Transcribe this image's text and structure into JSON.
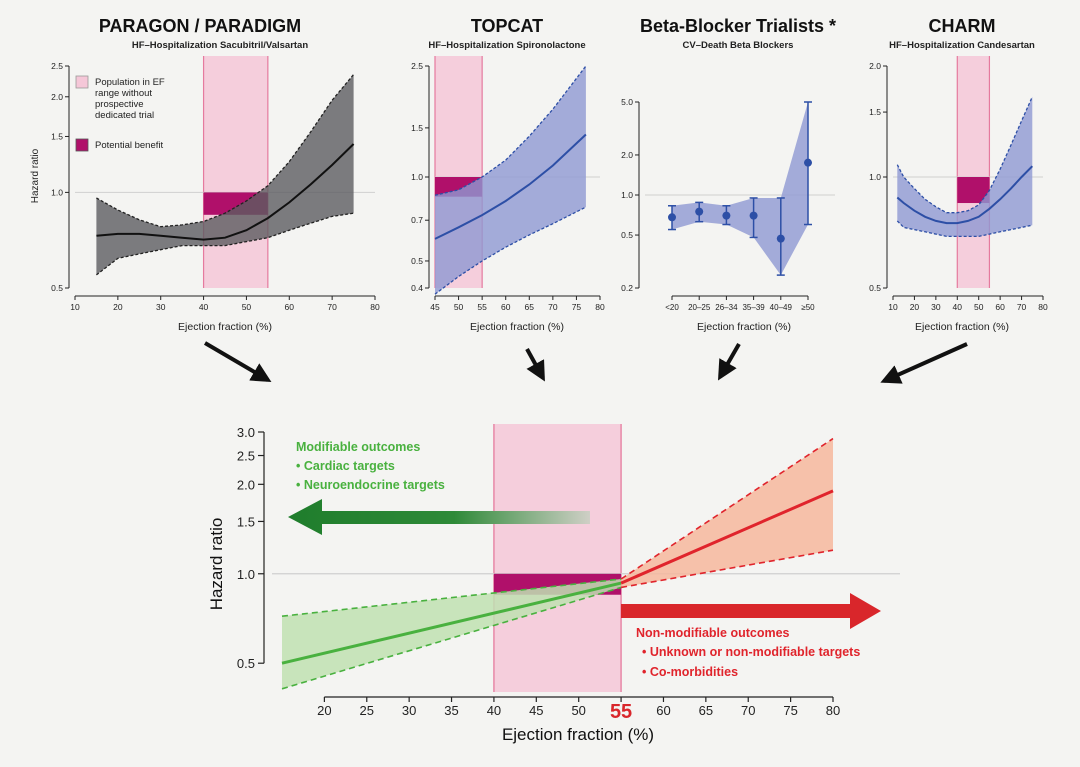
{
  "colors": {
    "pink": "#f5c7d8",
    "pink_edge": "#e57a9e",
    "benefit": "#b0106a",
    "gray_band": "#5d5d60",
    "blue_band": "#8f99d2",
    "blue_line": "#2d4fa6",
    "green_band": "#bfe1b1",
    "green_line": "#49b13f",
    "red_band": "#f6b79d",
    "red_line": "#e0242c",
    "green_arrow": "#1f7d2c",
    "red_arrow": "#d9262b"
  },
  "chart_data": [
    {
      "id": "paragon",
      "type": "area",
      "title": "PARAGON / PARADIGM",
      "subtitle": "HF–Hospitalization Sacubitril/Valsartan",
      "xlabel": "Ejection fraction (%)",
      "ylabel": "Hazard ratio",
      "xlim": [
        10,
        80
      ],
      "ylim": [
        0.5,
        2.5
      ],
      "yscale": "log",
      "xticks": [
        10,
        20,
        30,
        40,
        50,
        60,
        70,
        80
      ],
      "yticks": [
        0.5,
        1.0,
        1.5,
        2.0,
        2.5
      ],
      "highlight_range": [
        40,
        55
      ],
      "benefit": {
        "x": [
          40,
          55
        ],
        "y": [
          0.85,
          1.0
        ]
      },
      "band": {
        "color": "gray",
        "x": [
          15,
          20,
          25,
          30,
          35,
          40,
          45,
          50,
          55,
          60,
          65,
          70,
          75
        ],
        "lower": [
          0.55,
          0.62,
          0.64,
          0.66,
          0.68,
          0.68,
          0.68,
          0.7,
          0.72,
          0.76,
          0.8,
          0.84,
          0.86
        ],
        "upper": [
          0.96,
          0.88,
          0.82,
          0.78,
          0.79,
          0.81,
          0.86,
          0.94,
          1.05,
          1.25,
          1.55,
          1.95,
          2.35
        ]
      },
      "line": {
        "x": [
          15,
          20,
          25,
          30,
          35,
          40,
          45,
          50,
          55,
          60,
          65,
          70,
          75
        ],
        "y": [
          0.73,
          0.74,
          0.74,
          0.73,
          0.72,
          0.71,
          0.72,
          0.76,
          0.83,
          0.93,
          1.06,
          1.22,
          1.42
        ]
      },
      "legend": [
        {
          "label": "Population in EF range without prospective dedicated trial",
          "kind": "pink"
        },
        {
          "label": "Potential benefit",
          "kind": "benefit"
        }
      ]
    },
    {
      "id": "topcat",
      "type": "area",
      "title": "TOPCAT",
      "subtitle": "HF–Hospitalization Spironolactone",
      "xlabel": "Ejection fraction (%)",
      "ylabel": "",
      "xlim": [
        45,
        80
      ],
      "ylim": [
        0.4,
        2.5
      ],
      "yscale": "log",
      "xticks": [
        45,
        50,
        55,
        60,
        65,
        70,
        75,
        80
      ],
      "yticks": [
        0.4,
        0.5,
        0.7,
        1.0,
        1.5,
        2.5
      ],
      "highlight_range": [
        45,
        55
      ],
      "benefit": {
        "x": [
          45,
          55
        ],
        "y": [
          0.85,
          1.0
        ]
      },
      "band": {
        "color": "blue",
        "x": [
          45,
          50,
          55,
          60,
          65,
          70,
          77
        ],
        "lower": [
          0.38,
          0.44,
          0.5,
          0.56,
          0.62,
          0.68,
          0.78
        ],
        "upper": [
          0.86,
          0.9,
          1.0,
          1.15,
          1.4,
          1.75,
          2.5
        ]
      },
      "line": {
        "x": [
          45,
          50,
          55,
          60,
          65,
          70,
          77
        ],
        "y": [
          0.6,
          0.66,
          0.73,
          0.82,
          0.94,
          1.1,
          1.42
        ]
      }
    },
    {
      "id": "betablocker",
      "type": "scatter",
      "title": "Beta-Blocker Trialists *",
      "subtitle": "CV–Death Beta Blockers",
      "xlabel": "Ejection fraction (%)",
      "ylabel": "",
      "ylim": [
        0.2,
        5.0
      ],
      "yscale": "log",
      "yticks": [
        0.2,
        0.5,
        1.0,
        2.0,
        5.0
      ],
      "categories": [
        "<20",
        "20–25",
        "26–34",
        "35–39",
        "40–49",
        "≥50"
      ],
      "values": [
        0.68,
        0.75,
        0.7,
        0.7,
        0.47,
        1.75
      ],
      "lower": [
        0.55,
        0.63,
        0.6,
        0.48,
        0.25,
        0.6
      ],
      "upper": [
        0.83,
        0.88,
        0.83,
        0.95,
        0.95,
        5.0
      ]
    },
    {
      "id": "charm",
      "type": "area",
      "title": "CHARM",
      "subtitle": "HF–Hospitalization Candesartan",
      "xlabel": "Ejection fraction (%)",
      "ylabel": "",
      "xlim": [
        10,
        80
      ],
      "ylim": [
        0.5,
        2.0
      ],
      "yscale": "log",
      "xticks": [
        10,
        20,
        30,
        40,
        50,
        60,
        70,
        80
      ],
      "yticks": [
        0.5,
        1.0,
        1.5,
        2.0
      ],
      "highlight_range": [
        40,
        55
      ],
      "benefit": {
        "x": [
          40,
          55
        ],
        "y": [
          0.85,
          1.0
        ]
      },
      "band": {
        "color": "blue",
        "x": [
          12,
          15,
          20,
          25,
          30,
          35,
          40,
          45,
          50,
          55,
          60,
          65,
          70,
          75
        ],
        "lower": [
          0.76,
          0.73,
          0.72,
          0.71,
          0.7,
          0.69,
          0.69,
          0.69,
          0.69,
          0.7,
          0.71,
          0.72,
          0.73,
          0.74
        ],
        "upper": [
          1.08,
          1.0,
          0.93,
          0.87,
          0.83,
          0.8,
          0.8,
          0.81,
          0.84,
          0.92,
          1.05,
          1.22,
          1.42,
          1.65
        ]
      },
      "line": {
        "x": [
          12,
          15,
          20,
          25,
          30,
          35,
          40,
          45,
          50,
          55,
          60,
          65,
          70,
          75
        ],
        "y": [
          0.88,
          0.85,
          0.81,
          0.78,
          0.76,
          0.75,
          0.75,
          0.76,
          0.78,
          0.82,
          0.87,
          0.93,
          1.0,
          1.07
        ]
      }
    },
    {
      "id": "summary",
      "type": "area",
      "title": "",
      "subtitle": "",
      "xlabel": "Ejection fraction (%)",
      "ylabel": "Hazard ratio",
      "xlim": [
        15,
        80
      ],
      "ylim": [
        0.4,
        3.0
      ],
      "yscale": "log",
      "xticks": [
        20,
        25,
        30,
        35,
        40,
        45,
        50,
        60,
        65,
        70,
        75,
        80
      ],
      "threshold_tick": "55",
      "yticks": [
        0.5,
        1.0,
        1.5,
        2.0,
        2.5,
        3.0
      ],
      "highlight_range": [
        40,
        55
      ],
      "benefit": {
        "x": [
          40,
          55
        ],
        "y": [
          0.85,
          1.0
        ]
      },
      "series": [
        {
          "name": "modifiable",
          "color": "green",
          "x": [
            15,
            55
          ],
          "y": [
            0.5,
            0.93
          ],
          "lower": [
            0.41,
            0.9
          ],
          "upper": [
            0.72,
            0.96
          ]
        },
        {
          "name": "non-modifiable",
          "color": "red",
          "x": [
            55,
            80
          ],
          "y": [
            0.93,
            1.9
          ],
          "lower": [
            0.9,
            1.2
          ],
          "upper": [
            0.96,
            2.85
          ]
        }
      ],
      "modifiable": {
        "title": "Modifiable outcomes",
        "items": [
          "• Cardiac targets",
          "• Neuroendocrine targets"
        ]
      },
      "nonmodifiable": {
        "title": "Non-modifiable outcomes",
        "items": [
          "• Unknown or non-modifiable targets",
          "• Co-morbidities"
        ]
      }
    }
  ]
}
